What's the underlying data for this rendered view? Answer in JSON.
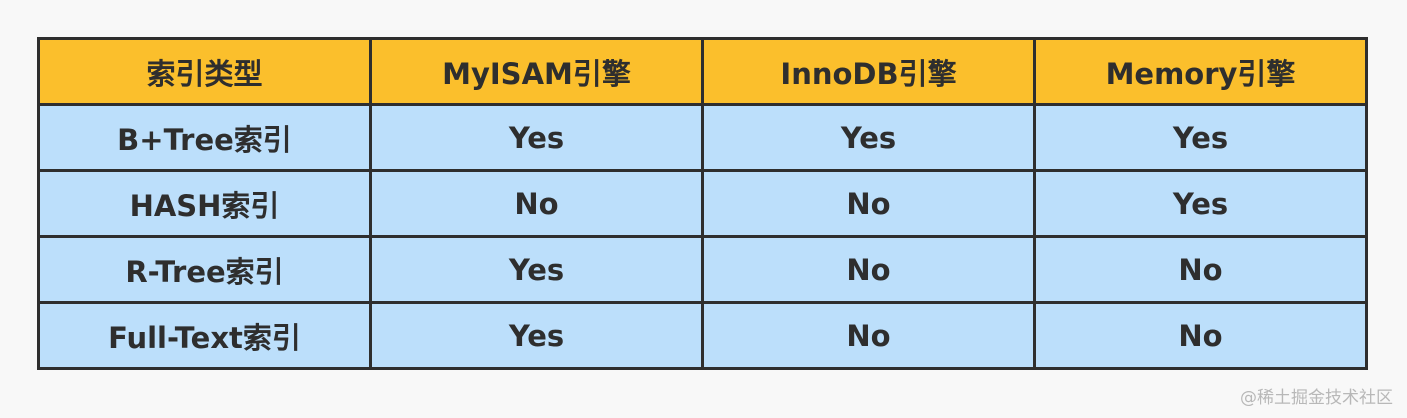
{
  "table": {
    "headers": [
      "索引类型",
      "MyISAM引擎",
      "InnoDB引擎",
      "Memory引擎"
    ],
    "rows": [
      [
        "B+Tree索引",
        "Yes",
        "Yes",
        "Yes"
      ],
      [
        "HASH索引",
        "No",
        "No",
        "Yes"
      ],
      [
        "R-Tree索引",
        "Yes",
        "No",
        "No"
      ],
      [
        "Full-Text索引",
        "Yes",
        "No",
        "No"
      ]
    ]
  },
  "watermark": "@稀土掘金技术社区",
  "colors": {
    "header": "#fbbf2c",
    "body": "#bcdffb",
    "border": "#2e2e2e"
  }
}
